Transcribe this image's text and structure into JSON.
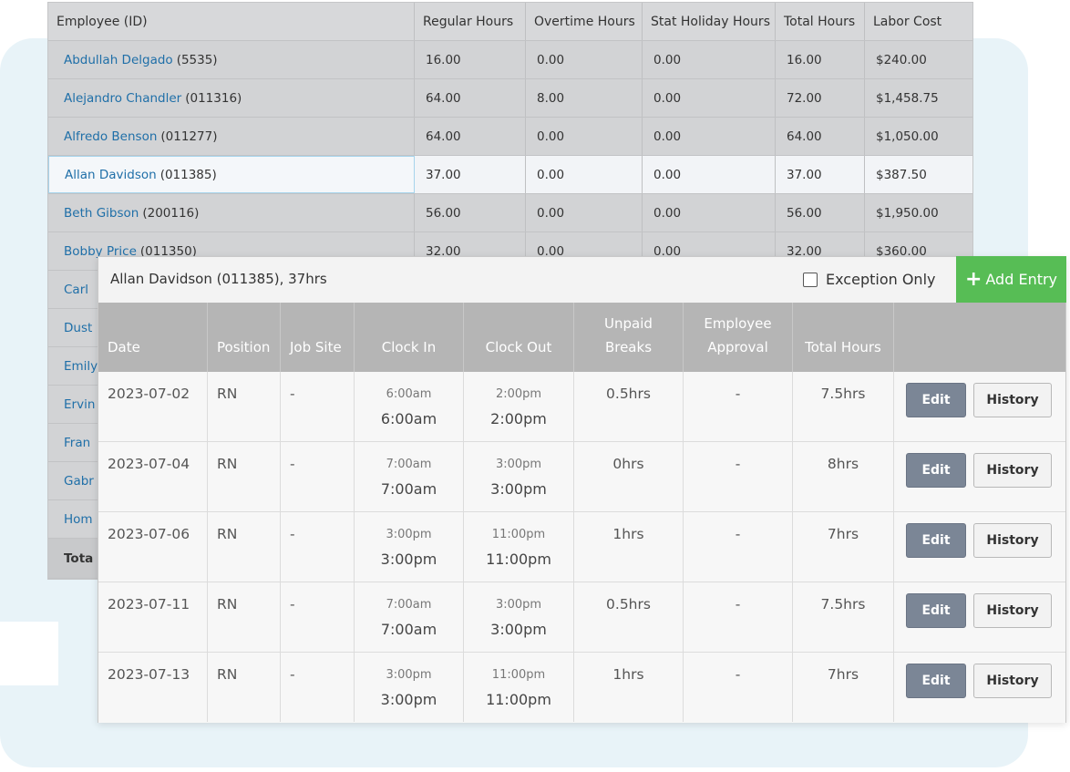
{
  "labor_table": {
    "columns": [
      "Employee (ID)",
      "Regular Hours",
      "Overtime Hours",
      "Stat Holiday Hours",
      "Total Hours",
      "Labor Cost"
    ],
    "rows": [
      {
        "name": "Abdullah Delgado",
        "id": "(5535)",
        "regular": "16.00",
        "overtime": "0.00",
        "stat": "0.00",
        "total": "16.00",
        "cost": "$240.00"
      },
      {
        "name": "Alejandro Chandler",
        "id": "(011316)",
        "regular": "64.00",
        "overtime": "8.00",
        "stat": "0.00",
        "total": "72.00",
        "cost": "$1,458.75"
      },
      {
        "name": "Alfredo Benson",
        "id": "(011277)",
        "regular": "64.00",
        "overtime": "0.00",
        "stat": "0.00",
        "total": "64.00",
        "cost": "$1,050.00"
      },
      {
        "name": "Allan Davidson",
        "id": "(011385)",
        "regular": "37.00",
        "overtime": "0.00",
        "stat": "0.00",
        "total": "37.00",
        "cost": "$387.50"
      },
      {
        "name": "Beth Gibson",
        "id": "(200116)",
        "regular": "56.00",
        "overtime": "0.00",
        "stat": "0.00",
        "total": "56.00",
        "cost": "$1,950.00"
      },
      {
        "name": "Bobby Price",
        "id": "(011350)",
        "regular": "32.00",
        "overtime": "0.00",
        "stat": "0.00",
        "total": "32.00",
        "cost": "$360.00"
      }
    ],
    "partial_names": [
      "Carl",
      "Dust",
      "Emily",
      "Ervin",
      "Fran",
      "Gabr",
      "Hom"
    ],
    "total_label": "Tota"
  },
  "panel": {
    "title": "Allan Davidson (011385), 37hrs",
    "exception_label": "Exception Only",
    "add_entry_label": "Add Entry",
    "columns": {
      "date": "Date",
      "position": "Position",
      "job_site": "Job Site",
      "clock_in": "Clock In",
      "clock_out": "Clock Out",
      "unpaid_breaks_1": "Unpaid",
      "unpaid_breaks_2": "Breaks",
      "employee_approval_1": "Employee",
      "employee_approval_2": "Approval",
      "total_hours": "Total Hours"
    },
    "entries": [
      {
        "date": "2023-07-02",
        "position": "RN",
        "job_site": "-",
        "in_sched": "6:00am",
        "in_actual": "6:00am",
        "out_sched": "2:00pm",
        "out_actual": "2:00pm",
        "breaks": "0.5hrs",
        "approval": "-",
        "total": "7.5hrs",
        "edit": "Edit",
        "history": "History"
      },
      {
        "date": "2023-07-04",
        "position": "RN",
        "job_site": "-",
        "in_sched": "7:00am",
        "in_actual": "7:00am",
        "out_sched": "3:00pm",
        "out_actual": "3:00pm",
        "breaks": "0hrs",
        "approval": "-",
        "total": "8hrs",
        "edit": "Edit",
        "history": "History"
      },
      {
        "date": "2023-07-06",
        "position": "RN",
        "job_site": "-",
        "in_sched": "3:00pm",
        "in_actual": "3:00pm",
        "out_sched": "11:00pm",
        "out_actual": "11:00pm",
        "breaks": "1hrs",
        "approval": "-",
        "total": "7hrs",
        "edit": "Edit",
        "history": "History"
      },
      {
        "date": "2023-07-11",
        "position": "RN",
        "job_site": "-",
        "in_sched": "7:00am",
        "in_actual": "7:00am",
        "out_sched": "3:00pm",
        "out_actual": "3:00pm",
        "breaks": "0.5hrs",
        "approval": "-",
        "total": "7.5hrs",
        "edit": "Edit",
        "history": "History"
      },
      {
        "date": "2023-07-13",
        "position": "RN",
        "job_site": "-",
        "in_sched": "3:00pm",
        "in_actual": "3:00pm",
        "out_sched": "11:00pm",
        "out_actual": "11:00pm",
        "breaks": "1hrs",
        "approval": "-",
        "total": "7hrs",
        "edit": "Edit",
        "history": "History"
      }
    ]
  },
  "colors": {
    "link": "#1f6fa8",
    "add_button": "#57bd55",
    "edit_button": "#7b8696",
    "header_bg": "#b5b5b5",
    "background_panel": "#e8f3f8"
  }
}
